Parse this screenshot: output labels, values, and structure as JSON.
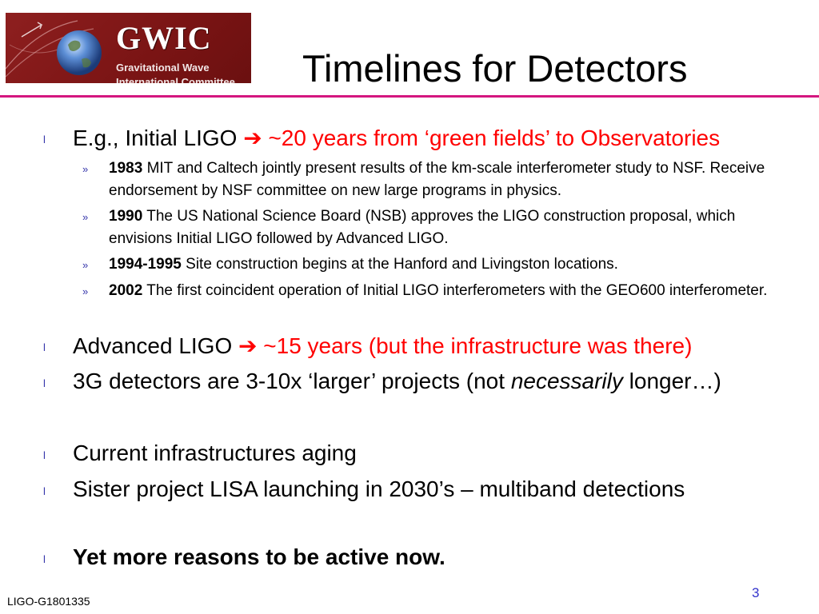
{
  "logo": {
    "title": "GWIC",
    "subtitle_line1": "Gravitational Wave",
    "subtitle_line2": "International Committee"
  },
  "slide": {
    "title": "Timelines for Detectors",
    "bullet_glyph": "l",
    "sub_bullet_glyph": "»",
    "arrow_glyph": "➔",
    "items": [
      {
        "text": "E.g., Initial LIGO",
        "highlight": "~20 years from ‘green fields’ to Observatories",
        "subitems": [
          {
            "year": "1983",
            "text": "MIT and Caltech jointly present results of the km-scale interferometer study to NSF. Receive endorsement by NSF committee on new large programs in physics."
          },
          {
            "year": "1990",
            "text": "The US National Science Board (NSB) approves the LIGO construction proposal, which envisions Initial LIGO followed by Advanced LIGO."
          },
          {
            "year": "1994-1995",
            "text": "Site construction begins at the Hanford and Livingston locations."
          },
          {
            "year": "2002",
            "text": "The first coincident operation of Initial LIGO interferometers with the GEO600 interferometer."
          }
        ]
      },
      {
        "text": "Advanced LIGO",
        "highlight": "~15 years (but the infrastructure was there)"
      },
      {
        "text_before": "3G detectors are 3-10x ‘larger’ projects (not",
        "emphasis": "necessarily",
        "text_after": "longer…)"
      },
      {
        "text": "Current infrastructures aging"
      },
      {
        "text": "Sister project LISA launching in 2030’s – multiband detections"
      },
      {
        "text": "Yet more reasons to be active now."
      }
    ]
  },
  "footer": {
    "page_number": "3",
    "doc_id": "LIGO-G1801335"
  },
  "colors": {
    "rule": "#d4167f",
    "highlight": "#ff0000",
    "logo_bg": "#8e1f1f",
    "bullet": "#3333aa"
  }
}
